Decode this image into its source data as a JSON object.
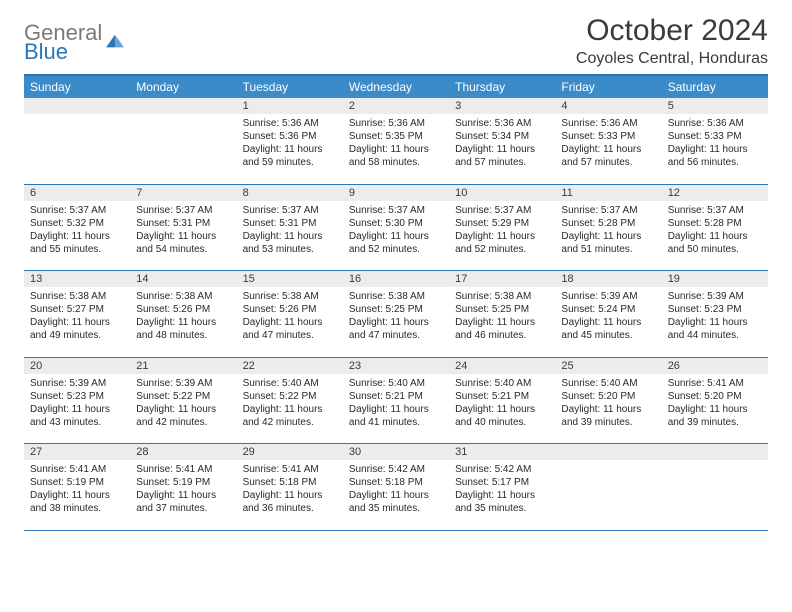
{
  "logo": {
    "word1": "General",
    "word2": "Blue",
    "gray": "#7a7a7a",
    "blue": "#2e75b6"
  },
  "title": "October 2024",
  "location": "Coyoles Central, Honduras",
  "colors": {
    "header_bg": "#3b8bc9",
    "header_border": "#2e75b6",
    "daynum_bg": "#ececec",
    "text": "#3a3a3a",
    "cell_border": "#2e75b6"
  },
  "weekdays": [
    "Sunday",
    "Monday",
    "Tuesday",
    "Wednesday",
    "Thursday",
    "Friday",
    "Saturday"
  ],
  "weeks": [
    [
      null,
      null,
      {
        "n": "1",
        "sr": "5:36 AM",
        "ss": "5:36 PM",
        "dl": "11 hours and 59 minutes."
      },
      {
        "n": "2",
        "sr": "5:36 AM",
        "ss": "5:35 PM",
        "dl": "11 hours and 58 minutes."
      },
      {
        "n": "3",
        "sr": "5:36 AM",
        "ss": "5:34 PM",
        "dl": "11 hours and 57 minutes."
      },
      {
        "n": "4",
        "sr": "5:36 AM",
        "ss": "5:33 PM",
        "dl": "11 hours and 57 minutes."
      },
      {
        "n": "5",
        "sr": "5:36 AM",
        "ss": "5:33 PM",
        "dl": "11 hours and 56 minutes."
      }
    ],
    [
      {
        "n": "6",
        "sr": "5:37 AM",
        "ss": "5:32 PM",
        "dl": "11 hours and 55 minutes."
      },
      {
        "n": "7",
        "sr": "5:37 AM",
        "ss": "5:31 PM",
        "dl": "11 hours and 54 minutes."
      },
      {
        "n": "8",
        "sr": "5:37 AM",
        "ss": "5:31 PM",
        "dl": "11 hours and 53 minutes."
      },
      {
        "n": "9",
        "sr": "5:37 AM",
        "ss": "5:30 PM",
        "dl": "11 hours and 52 minutes."
      },
      {
        "n": "10",
        "sr": "5:37 AM",
        "ss": "5:29 PM",
        "dl": "11 hours and 52 minutes."
      },
      {
        "n": "11",
        "sr": "5:37 AM",
        "ss": "5:28 PM",
        "dl": "11 hours and 51 minutes."
      },
      {
        "n": "12",
        "sr": "5:37 AM",
        "ss": "5:28 PM",
        "dl": "11 hours and 50 minutes."
      }
    ],
    [
      {
        "n": "13",
        "sr": "5:38 AM",
        "ss": "5:27 PM",
        "dl": "11 hours and 49 minutes."
      },
      {
        "n": "14",
        "sr": "5:38 AM",
        "ss": "5:26 PM",
        "dl": "11 hours and 48 minutes."
      },
      {
        "n": "15",
        "sr": "5:38 AM",
        "ss": "5:26 PM",
        "dl": "11 hours and 47 minutes."
      },
      {
        "n": "16",
        "sr": "5:38 AM",
        "ss": "5:25 PM",
        "dl": "11 hours and 47 minutes."
      },
      {
        "n": "17",
        "sr": "5:38 AM",
        "ss": "5:25 PM",
        "dl": "11 hours and 46 minutes."
      },
      {
        "n": "18",
        "sr": "5:39 AM",
        "ss": "5:24 PM",
        "dl": "11 hours and 45 minutes."
      },
      {
        "n": "19",
        "sr": "5:39 AM",
        "ss": "5:23 PM",
        "dl": "11 hours and 44 minutes."
      }
    ],
    [
      {
        "n": "20",
        "sr": "5:39 AM",
        "ss": "5:23 PM",
        "dl": "11 hours and 43 minutes."
      },
      {
        "n": "21",
        "sr": "5:39 AM",
        "ss": "5:22 PM",
        "dl": "11 hours and 42 minutes."
      },
      {
        "n": "22",
        "sr": "5:40 AM",
        "ss": "5:22 PM",
        "dl": "11 hours and 42 minutes."
      },
      {
        "n": "23",
        "sr": "5:40 AM",
        "ss": "5:21 PM",
        "dl": "11 hours and 41 minutes."
      },
      {
        "n": "24",
        "sr": "5:40 AM",
        "ss": "5:21 PM",
        "dl": "11 hours and 40 minutes."
      },
      {
        "n": "25",
        "sr": "5:40 AM",
        "ss": "5:20 PM",
        "dl": "11 hours and 39 minutes."
      },
      {
        "n": "26",
        "sr": "5:41 AM",
        "ss": "5:20 PM",
        "dl": "11 hours and 39 minutes."
      }
    ],
    [
      {
        "n": "27",
        "sr": "5:41 AM",
        "ss": "5:19 PM",
        "dl": "11 hours and 38 minutes."
      },
      {
        "n": "28",
        "sr": "5:41 AM",
        "ss": "5:19 PM",
        "dl": "11 hours and 37 minutes."
      },
      {
        "n": "29",
        "sr": "5:41 AM",
        "ss": "5:18 PM",
        "dl": "11 hours and 36 minutes."
      },
      {
        "n": "30",
        "sr": "5:42 AM",
        "ss": "5:18 PM",
        "dl": "11 hours and 35 minutes."
      },
      {
        "n": "31",
        "sr": "5:42 AM",
        "ss": "5:17 PM",
        "dl": "11 hours and 35 minutes."
      },
      null,
      null
    ]
  ],
  "labels": {
    "sunrise": "Sunrise:",
    "sunset": "Sunset:",
    "daylight": "Daylight:"
  }
}
